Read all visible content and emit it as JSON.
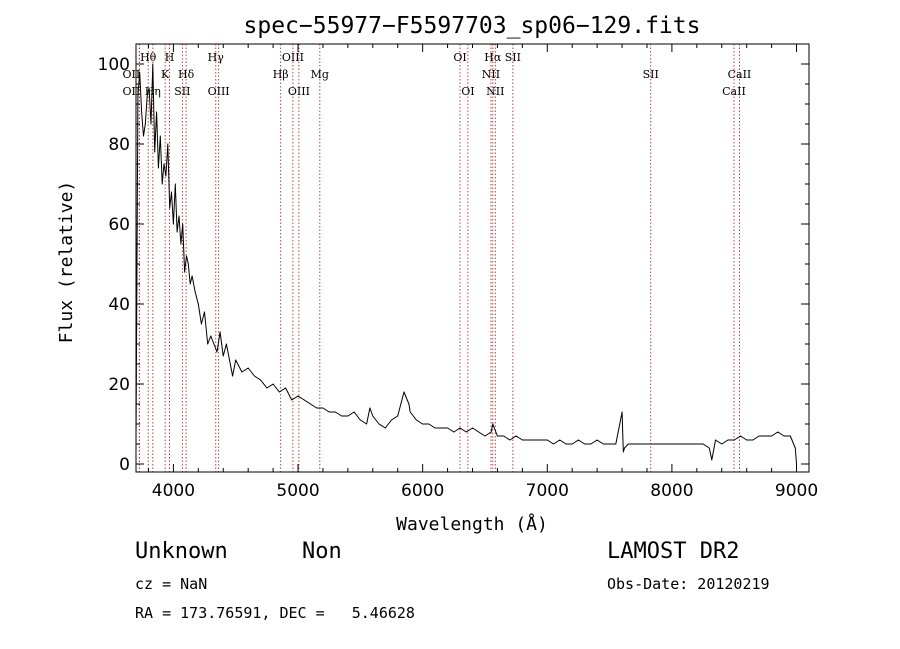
{
  "chart_data": {
    "type": "line",
    "title": "spec−55977−F5597703_sp06−129.fits",
    "xlabel": "Wavelength (Å)",
    "ylabel": "Flux (relative)",
    "xlim": [
      3700,
      9100
    ],
    "ylim": [
      -2,
      105
    ],
    "xticks": [
      "4000",
      "5000",
      "6000",
      "7000",
      "8000",
      "9000"
    ],
    "yticks": [
      "0",
      "20",
      "40",
      "60",
      "80",
      "100"
    ],
    "series": [
      {
        "color": "#000000",
        "x": [
          3700,
          3715,
          3730,
          3745,
          3760,
          3775,
          3790,
          3805,
          3820,
          3835,
          3850,
          3865,
          3880,
          3895,
          3910,
          3925,
          3940,
          3955,
          3970,
          3985,
          4000,
          4015,
          4030,
          4045,
          4060,
          4075,
          4090,
          4105,
          4120,
          4135,
          4150,
          4175,
          4200,
          4225,
          4250,
          4275,
          4300,
          4325,
          4350,
          4375,
          4400,
          4425,
          4450,
          4475,
          4500,
          4550,
          4600,
          4650,
          4700,
          4750,
          4800,
          4850,
          4900,
          4950,
          5000,
          5050,
          5100,
          5150,
          5200,
          5250,
          5300,
          5350,
          5400,
          5450,
          5500,
          5550,
          5577,
          5600,
          5650,
          5700,
          5750,
          5800,
          5850,
          5890,
          5900,
          5950,
          6000,
          6050,
          6100,
          6150,
          6200,
          6250,
          6300,
          6350,
          6400,
          6450,
          6500,
          6550,
          6563,
          6600,
          6650,
          6700,
          6750,
          6800,
          6850,
          6900,
          6950,
          7000,
          7050,
          7100,
          7150,
          7200,
          7250,
          7300,
          7350,
          7400,
          7450,
          7500,
          7550,
          7600,
          7610,
          7620,
          7650,
          7700,
          7750,
          7800,
          7850,
          7900,
          7950,
          8000,
          8050,
          8100,
          8150,
          8200,
          8250,
          8300,
          8320,
          8350,
          8400,
          8450,
          8500,
          8550,
          8600,
          8650,
          8700,
          8750,
          8800,
          8850,
          8900,
          8950,
          8990,
          9000
        ],
        "y": [
          5,
          92,
          98,
          88,
          82,
          85,
          92,
          94,
          85,
          100,
          78,
          88,
          74,
          82,
          70,
          75,
          72,
          80,
          64,
          68,
          60,
          70,
          58,
          62,
          55,
          60,
          48,
          52,
          50,
          45,
          47,
          43,
          40,
          35,
          38,
          30,
          32,
          30,
          28,
          33,
          27,
          30,
          26,
          22,
          26,
          23,
          24,
          22,
          21,
          19,
          20,
          18,
          19,
          16,
          17,
          16,
          15,
          14,
          14,
          13,
          13,
          12,
          12,
          13,
          11,
          10,
          14,
          12,
          10,
          9,
          11,
          12,
          18,
          15,
          13,
          11,
          10,
          10,
          9,
          9,
          9,
          8,
          9,
          8,
          9,
          8,
          7,
          8,
          10,
          7,
          7,
          6,
          7,
          6,
          6,
          6,
          6,
          6,
          5,
          6,
          5,
          5,
          6,
          5,
          5,
          6,
          5,
          5,
          5,
          13,
          3,
          4,
          5,
          5,
          5,
          5,
          5,
          5,
          5,
          5,
          5,
          5,
          5,
          5,
          5,
          4,
          1,
          6,
          5,
          6,
          6,
          7,
          6,
          6,
          7,
          7,
          7,
          8,
          7,
          7,
          4,
          0
        ]
      }
    ],
    "lines": [
      {
        "label": "OΙΙ",
        "x": 3727,
        "row": "top-b",
        "side": "left"
      },
      {
        "label": "OΙΙ",
        "x": 3727,
        "row": "mid",
        "side": "left"
      },
      {
        "label": "Hθ",
        "x": 3798,
        "row": "top-a",
        "side": "center"
      },
      {
        "label": "Hη",
        "x": 3835,
        "row": "mid",
        "side": "center"
      },
      {
        "label": "K",
        "x": 3934,
        "row": "top-b",
        "side": "center"
      },
      {
        "label": "H",
        "x": 3969,
        "row": "top-a",
        "side": "center"
      },
      {
        "label": "SΙΙ",
        "x": 4072,
        "row": "mid",
        "side": "center"
      },
      {
        "label": "Hδ",
        "x": 4102,
        "row": "top-b",
        "side": "center"
      },
      {
        "label": "Hγ",
        "x": 4340,
        "row": "top-a",
        "side": "center"
      },
      {
        "label": "OΙΙΙ",
        "x": 4363,
        "row": "mid",
        "side": "center"
      },
      {
        "label": "Hβ",
        "x": 4861,
        "row": "top-b",
        "side": "center"
      },
      {
        "label": "OΙΙΙ",
        "x": 4959,
        "row": "top-a",
        "side": "center"
      },
      {
        "label": "OΙΙΙ",
        "x": 5007,
        "row": "mid",
        "side": "center"
      },
      {
        "label": "Mg",
        "x": 5175,
        "row": "top-b",
        "side": "center"
      },
      {
        "label": "OΙ",
        "x": 6300,
        "row": "top-a",
        "side": "center"
      },
      {
        "label": "OΙ",
        "x": 6363,
        "row": "mid",
        "side": "center"
      },
      {
        "label": "Hα",
        "x": 6563,
        "row": "top-a",
        "side": "center"
      },
      {
        "label": "NΙΙ",
        "x": 6548,
        "row": "top-b",
        "side": "center"
      },
      {
        "label": "NΙΙ",
        "x": 6583,
        "row": "mid",
        "side": "center"
      },
      {
        "label": "SΙΙ",
        "x": 6724,
        "row": "top-a",
        "side": "center"
      },
      {
        "label": "SΙΙ",
        "x": 7830,
        "row": "top-b",
        "side": "center"
      },
      {
        "label": "CaΙΙ",
        "x": 8542,
        "row": "top-b",
        "side": "center"
      },
      {
        "label": "CaΙΙ",
        "x": 8498,
        "row": "mid",
        "side": "center"
      }
    ],
    "grid": false,
    "legend": "none"
  },
  "info": {
    "class": "Unknown",
    "subclass": "Non",
    "survey": "LAMOST DR2",
    "cz": "cz = NaN",
    "obs_date": "Obs-Date: 20120219",
    "coords": "RA = 173.76591, DEC =   5.46628"
  }
}
